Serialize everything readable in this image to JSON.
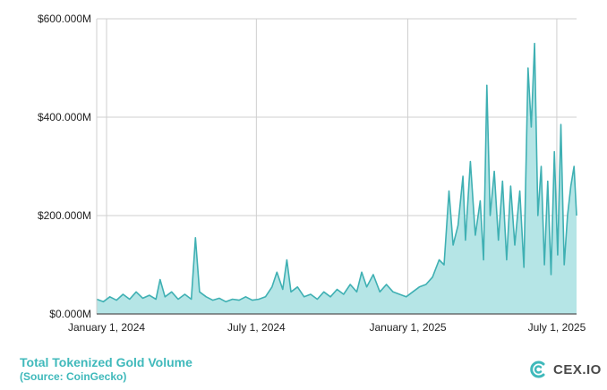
{
  "chart_data": {
    "type": "area",
    "title": "",
    "xlabel": "",
    "ylabel": "",
    "x_range": [
      "2023-12-20",
      "2025-07-25"
    ],
    "ylim": [
      0,
      600
    ],
    "y_unit": "M USD",
    "y_ticks": [
      {
        "value": 0,
        "label": "$0.000M"
      },
      {
        "value": 200,
        "label": "$200.000M"
      },
      {
        "value": 400,
        "label": "$400.000M"
      },
      {
        "value": 600,
        "label": "$600.000M"
      }
    ],
    "x_ticks": [
      {
        "date": "2024-01-01",
        "label": "January 1, 2024"
      },
      {
        "date": "2024-07-01",
        "label": "July 1, 2024"
      },
      {
        "date": "2025-01-01",
        "label": "January 1, 2025"
      },
      {
        "date": "2025-07-01",
        "label": "July 1, 2025"
      }
    ],
    "grid": true,
    "colors": {
      "line": "#3fb0b3",
      "fill": "#b5e5e6",
      "grid": "#cfcfcf",
      "axis": "#555555"
    },
    "series": [
      {
        "points": [
          [
            "2023-12-20",
            30
          ],
          [
            "2023-12-28",
            25
          ],
          [
            "2024-01-05",
            35
          ],
          [
            "2024-01-13",
            28
          ],
          [
            "2024-01-21",
            40
          ],
          [
            "2024-01-29",
            30
          ],
          [
            "2024-02-06",
            45
          ],
          [
            "2024-02-14",
            32
          ],
          [
            "2024-02-22",
            38
          ],
          [
            "2024-03-01",
            30
          ],
          [
            "2024-03-06",
            70
          ],
          [
            "2024-03-12",
            35
          ],
          [
            "2024-03-20",
            45
          ],
          [
            "2024-03-28",
            30
          ],
          [
            "2024-04-05",
            40
          ],
          [
            "2024-04-13",
            30
          ],
          [
            "2024-04-18",
            155
          ],
          [
            "2024-04-23",
            45
          ],
          [
            "2024-05-01",
            35
          ],
          [
            "2024-05-09",
            28
          ],
          [
            "2024-05-17",
            32
          ],
          [
            "2024-05-25",
            25
          ],
          [
            "2024-06-02",
            30
          ],
          [
            "2024-06-10",
            28
          ],
          [
            "2024-06-18",
            35
          ],
          [
            "2024-06-26",
            28
          ],
          [
            "2024-07-04",
            30
          ],
          [
            "2024-07-12",
            35
          ],
          [
            "2024-07-20",
            55
          ],
          [
            "2024-07-26",
            85
          ],
          [
            "2024-08-02",
            50
          ],
          [
            "2024-08-07",
            110
          ],
          [
            "2024-08-12",
            45
          ],
          [
            "2024-08-20",
            55
          ],
          [
            "2024-08-28",
            35
          ],
          [
            "2024-09-05",
            40
          ],
          [
            "2024-09-13",
            30
          ],
          [
            "2024-09-21",
            45
          ],
          [
            "2024-09-29",
            35
          ],
          [
            "2024-10-07",
            50
          ],
          [
            "2024-10-15",
            40
          ],
          [
            "2024-10-23",
            60
          ],
          [
            "2024-10-31",
            45
          ],
          [
            "2024-11-06",
            85
          ],
          [
            "2024-11-12",
            55
          ],
          [
            "2024-11-20",
            80
          ],
          [
            "2024-11-28",
            45
          ],
          [
            "2024-12-06",
            60
          ],
          [
            "2024-12-14",
            45
          ],
          [
            "2024-12-22",
            40
          ],
          [
            "2024-12-30",
            35
          ],
          [
            "2025-01-07",
            45
          ],
          [
            "2025-01-15",
            55
          ],
          [
            "2025-01-23",
            60
          ],
          [
            "2025-01-31",
            75
          ],
          [
            "2025-02-08",
            110
          ],
          [
            "2025-02-14",
            100
          ],
          [
            "2025-02-20",
            250
          ],
          [
            "2025-02-25",
            140
          ],
          [
            "2025-03-03",
            180
          ],
          [
            "2025-03-09",
            280
          ],
          [
            "2025-03-12",
            150
          ],
          [
            "2025-03-18",
            310
          ],
          [
            "2025-03-24",
            160
          ],
          [
            "2025-03-30",
            230
          ],
          [
            "2025-04-03",
            110
          ],
          [
            "2025-04-07",
            465
          ],
          [
            "2025-04-11",
            200
          ],
          [
            "2025-04-16",
            290
          ],
          [
            "2025-04-21",
            150
          ],
          [
            "2025-04-26",
            270
          ],
          [
            "2025-05-01",
            110
          ],
          [
            "2025-05-06",
            260
          ],
          [
            "2025-05-11",
            140
          ],
          [
            "2025-05-17",
            250
          ],
          [
            "2025-05-22",
            95
          ],
          [
            "2025-05-27",
            500
          ],
          [
            "2025-05-31",
            380
          ],
          [
            "2025-06-04",
            550
          ],
          [
            "2025-06-08",
            200
          ],
          [
            "2025-06-12",
            300
          ],
          [
            "2025-06-16",
            100
          ],
          [
            "2025-06-20",
            270
          ],
          [
            "2025-06-24",
            80
          ],
          [
            "2025-06-28",
            330
          ],
          [
            "2025-07-02",
            120
          ],
          [
            "2025-07-06",
            385
          ],
          [
            "2025-07-10",
            100
          ],
          [
            "2025-07-14",
            200
          ],
          [
            "2025-07-18",
            260
          ],
          [
            "2025-07-22",
            300
          ],
          [
            "2025-07-25",
            200
          ]
        ]
      }
    ]
  },
  "footer": {
    "title": "Total Tokenized Gold Volume",
    "source": "(Source: CoinGecko)"
  },
  "brand": {
    "name": "CEX.IO",
    "logo_icon": "cex-io-logo-icon",
    "color": "#3fb9bb"
  }
}
